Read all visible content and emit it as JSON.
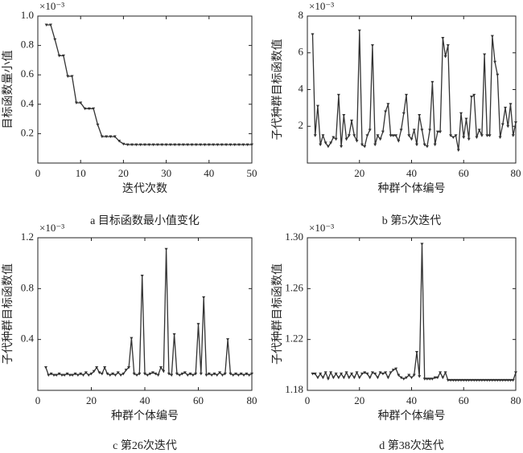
{
  "chart_data": [
    {
      "type": "line",
      "caption": "a 目标函数最小值变化",
      "x_label": "迭代次数",
      "y_label": "目标函数量小值",
      "exponent": "×10⁻³",
      "color": "#333333",
      "x": [
        2,
        3,
        4,
        5,
        6,
        7,
        8,
        9,
        10,
        11,
        12,
        13,
        14,
        15,
        16,
        17,
        18,
        19,
        20,
        21,
        22,
        23,
        24,
        25,
        26,
        27,
        28,
        29,
        30,
        31,
        32,
        33,
        34,
        35,
        36,
        37,
        38,
        39,
        40,
        41,
        42,
        43,
        44,
        45,
        46,
        47,
        48,
        49,
        50
      ],
      "values": [
        0.94,
        0.94,
        0.84,
        0.73,
        0.73,
        0.59,
        0.59,
        0.41,
        0.41,
        0.37,
        0.37,
        0.37,
        0.26,
        0.18,
        0.18,
        0.18,
        0.18,
        0.15,
        0.13,
        0.125,
        0.125,
        0.125,
        0.125,
        0.125,
        0.125,
        0.125,
        0.125,
        0.125,
        0.125,
        0.125,
        0.125,
        0.125,
        0.125,
        0.125,
        0.125,
        0.125,
        0.125,
        0.125,
        0.125,
        0.125,
        0.125,
        0.125,
        0.125,
        0.125,
        0.125,
        0.125,
        0.125,
        0.125,
        0.125
      ],
      "xlim": [
        0,
        50
      ],
      "xticks": [
        0,
        10,
        20,
        30,
        40,
        50
      ],
      "ylim": [
        0,
        1
      ],
      "yticks": [
        0.2,
        0.4,
        0.6,
        0.8,
        {
          "value": 1,
          "label": "1.0"
        }
      ]
    },
    {
      "type": "line",
      "caption": "b 第5次迭代",
      "x_label": "种群个体编号",
      "y_label": "子代种群目标函数值",
      "exponent": "×10⁻³",
      "color": "#333333",
      "x": [
        2,
        3,
        4,
        5,
        6,
        7,
        8,
        9,
        10,
        11,
        12,
        13,
        14,
        15,
        16,
        17,
        18,
        19,
        20,
        21,
        22,
        23,
        24,
        25,
        26,
        27,
        28,
        29,
        30,
        31,
        32,
        33,
        34,
        35,
        36,
        37,
        38,
        39,
        40,
        41,
        42,
        43,
        44,
        45,
        46,
        47,
        48,
        49,
        50,
        51,
        52,
        53,
        54,
        55,
        56,
        57,
        58,
        59,
        60,
        61,
        62,
        63,
        64,
        65,
        66,
        67,
        68,
        69,
        70,
        71,
        72,
        73,
        74,
        75,
        76,
        77,
        78,
        79,
        80
      ],
      "values": [
        7.0,
        1.5,
        3.1,
        1.0,
        1.5,
        1.1,
        0.9,
        1.1,
        1.4,
        1.3,
        3.7,
        0.9,
        2.6,
        1.3,
        1.5,
        2.3,
        1.5,
        1.2,
        7.2,
        1.0,
        0.9,
        1.5,
        1.8,
        6.4,
        1.0,
        1.5,
        1.3,
        1.7,
        2.8,
        3.2,
        1.5,
        1.5,
        1.5,
        1.2,
        1.8,
        2.7,
        3.7,
        1.5,
        1.3,
        1.8,
        1.0,
        2.6,
        1.8,
        1.0,
        0.9,
        1.8,
        4.4,
        1.0,
        1.7,
        1.7,
        6.8,
        5.8,
        6.4,
        1.5,
        1.4,
        1.5,
        0.7,
        2.7,
        1.4,
        2.4,
        1.3,
        3.6,
        3.7,
        1.4,
        1.8,
        1.5,
        5.9,
        1.5,
        1.5,
        6.9,
        5.5,
        4.8,
        1.4,
        2.1,
        3.0,
        2.0,
        3.2,
        1.5,
        2.2
      ],
      "xlim": [
        0,
        80
      ],
      "xticks": [
        20,
        40,
        60,
        80
      ],
      "ylim": [
        0,
        8
      ],
      "yticks": [
        2,
        4,
        6,
        8
      ]
    },
    {
      "type": "line",
      "caption": "c 第26次迭代",
      "x_label": "种群个体编号",
      "y_label": "子代种群目标函数值",
      "exponent": "×10⁻³",
      "color": "#333333",
      "x": [
        3,
        4,
        5,
        6,
        7,
        8,
        9,
        10,
        11,
        12,
        13,
        14,
        15,
        16,
        17,
        18,
        19,
        20,
        21,
        22,
        23,
        24,
        25,
        26,
        27,
        28,
        29,
        30,
        31,
        32,
        33,
        34,
        35,
        36,
        37,
        38,
        39,
        40,
        41,
        42,
        43,
        44,
        45,
        46,
        47,
        48,
        49,
        50,
        51,
        52,
        53,
        54,
        55,
        56,
        57,
        58,
        59,
        60,
        61,
        62,
        63,
        64,
        65,
        66,
        67,
        68,
        69,
        70,
        71,
        72,
        73,
        74,
        75,
        76,
        77,
        78,
        79,
        80
      ],
      "values": [
        0.18,
        0.12,
        0.13,
        0.12,
        0.12,
        0.13,
        0.12,
        0.12,
        0.13,
        0.12,
        0.12,
        0.13,
        0.12,
        0.13,
        0.12,
        0.14,
        0.12,
        0.13,
        0.15,
        0.18,
        0.14,
        0.13,
        0.18,
        0.13,
        0.12,
        0.13,
        0.12,
        0.14,
        0.12,
        0.13,
        0.16,
        0.18,
        0.41,
        0.13,
        0.12,
        0.13,
        0.9,
        0.13,
        0.12,
        0.13,
        0.14,
        0.13,
        0.12,
        0.18,
        0.15,
        1.11,
        0.13,
        0.12,
        0.44,
        0.13,
        0.12,
        0.13,
        0.14,
        0.12,
        0.13,
        0.12,
        0.13,
        0.52,
        0.13,
        0.73,
        0.12,
        0.13,
        0.12,
        0.13,
        0.12,
        0.14,
        0.12,
        0.13,
        0.4,
        0.13,
        0.12,
        0.13,
        0.12,
        0.13,
        0.12,
        0.13,
        0.12,
        0.13
      ],
      "xlim": [
        0,
        80
      ],
      "xticks": [
        0,
        20,
        40,
        60,
        80
      ],
      "ylim": [
        0,
        1.2
      ],
      "yticks": [
        0.4,
        0.8,
        1.2
      ]
    },
    {
      "type": "line",
      "caption": "d 第38次迭代",
      "x_label": "种群个体编号",
      "y_label": "子代种群目标函数值",
      "exponent": "×10⁻³",
      "color": "#333333",
      "x": [
        2,
        3,
        4,
        5,
        6,
        7,
        8,
        9,
        10,
        11,
        12,
        13,
        14,
        15,
        16,
        17,
        18,
        19,
        20,
        21,
        22,
        23,
        24,
        25,
        26,
        27,
        28,
        29,
        30,
        31,
        32,
        33,
        34,
        35,
        36,
        37,
        38,
        39,
        40,
        41,
        42,
        43,
        44,
        45,
        46,
        47,
        48,
        49,
        50,
        51,
        52,
        53,
        54,
        55,
        56,
        57,
        58,
        59,
        60,
        61,
        62,
        63,
        64,
        65,
        66,
        67,
        68,
        69,
        70,
        71,
        72,
        73,
        74,
        75,
        76,
        77,
        78,
        79,
        80
      ],
      "values": [
        1.193,
        1.193,
        1.19,
        1.193,
        1.19,
        1.194,
        1.189,
        1.194,
        1.19,
        1.193,
        1.19,
        1.193,
        1.19,
        1.194,
        1.19,
        1.193,
        1.19,
        1.194,
        1.19,
        1.193,
        1.194,
        1.193,
        1.19,
        1.194,
        1.193,
        1.19,
        1.194,
        1.193,
        1.194,
        1.19,
        1.194,
        1.196,
        1.197,
        1.192,
        1.19,
        1.189,
        1.19,
        1.192,
        1.19,
        1.192,
        1.21,
        1.191,
        1.295,
        1.189,
        1.189,
        1.189,
        1.189,
        1.19,
        1.19,
        1.194,
        1.19,
        1.194,
        1.188,
        1.188,
        1.188,
        1.188,
        1.188,
        1.188,
        1.188,
        1.188,
        1.188,
        1.188,
        1.188,
        1.188,
        1.188,
        1.188,
        1.188,
        1.188,
        1.188,
        1.188,
        1.188,
        1.188,
        1.188,
        1.188,
        1.188,
        1.188,
        1.188,
        1.188,
        1.194
      ],
      "xlim": [
        0,
        80
      ],
      "xticks": [
        0,
        20,
        40,
        60,
        80
      ],
      "ylim": [
        1.18,
        1.3
      ],
      "yticks": [
        1.18,
        1.22,
        1.26,
        {
          "value": 1.3,
          "label": "1.30"
        }
      ]
    }
  ]
}
